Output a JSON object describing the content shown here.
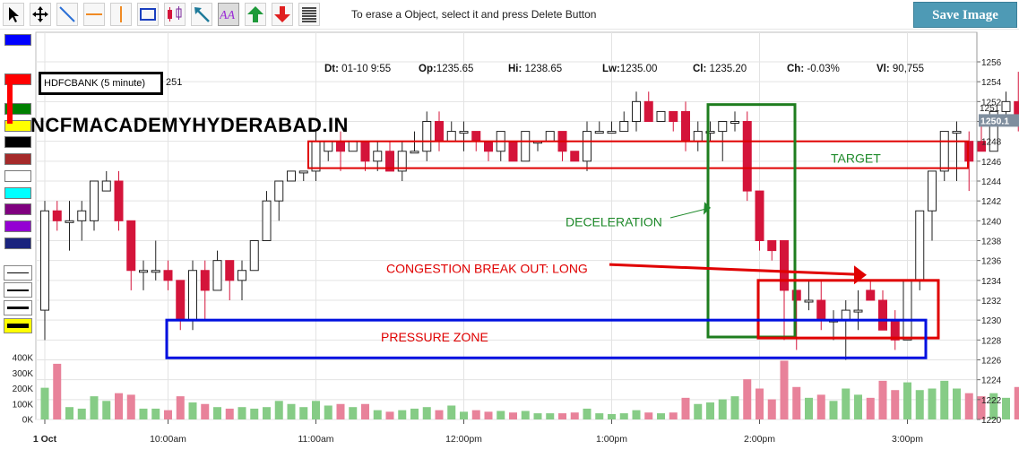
{
  "toolbar": {
    "tools": [
      {
        "name": "pointer-tool-icon"
      },
      {
        "name": "move-tool-icon"
      },
      {
        "name": "trendline-tool-icon"
      },
      {
        "name": "horizontal-line-tool-icon"
      },
      {
        "name": "vertical-line-tool-icon"
      },
      {
        "name": "rectangle-tool-icon"
      },
      {
        "name": "candle-pattern-tool-icon"
      },
      {
        "name": "arrow-tool-icon"
      },
      {
        "name": "text-tool-icon"
      },
      {
        "name": "up-arrow-tool-icon"
      },
      {
        "name": "down-arrow-tool-icon"
      },
      {
        "name": "fibonacci-tool-icon"
      }
    ],
    "hint": "To erase a Object, select it and press Delete Button",
    "save_label": "Save Image"
  },
  "palette": {
    "colors": [
      "#0000ff",
      "#ff0000",
      "#008000",
      "#ffff00",
      "#000000",
      "#a52a2a",
      "#ffffff",
      "#00ffff",
      "#800080",
      "#9400d3",
      "#1a237e"
    ],
    "line_widths": [
      1,
      2,
      3,
      5
    ]
  },
  "ohlc": {
    "date_label": "Dt:",
    "date": "01-10 9:55",
    "open_label": "Op:",
    "open": "1235.65",
    "high_label": "Hi:",
    "high": "1238.65",
    "low_label": "Lw:",
    "low": "1235.00",
    "close_label": "Cl:",
    "close": "1235.20",
    "change_label": "Ch:",
    "change": "-0.03%",
    "volume_label": "Vl:",
    "volume": "90,755"
  },
  "symbol": {
    "name": "HDFCBANK (5 minute)",
    "extra": "251"
  },
  "watermark": "NCFMACADEMYHYDERABAD.IN",
  "annotations": {
    "target": "TARGET",
    "deceleration": "DECELERATION",
    "congestion": "CONGESTION BREAK OUT: LONG",
    "pressure": "PRESSURE ZONE"
  },
  "colors": {
    "up_candle": "#ffffff",
    "down_candle": "#d4143a",
    "up_volume": "#86cc86",
    "down_volume": "#e8829a",
    "target_box": "#e00000",
    "deceleration_box": "#1e7d1e",
    "pressure_box": "#0010e0",
    "congestion_box": "#e00000",
    "price_tag": "#7f8e9e"
  },
  "chart_data": {
    "type": "candlestick",
    "ylim": [
      1220,
      1256
    ],
    "y_ticks": [
      1220,
      1222,
      1224,
      1226,
      1228,
      1230,
      1232,
      1234,
      1236,
      1238,
      1240,
      1242,
      1244,
      1246,
      1248,
      1250,
      1252,
      1254,
      1256
    ],
    "current_price_label": "1250.1",
    "partial_price_label": "1251",
    "volume_ticks": [
      "0K",
      "100K",
      "200K",
      "300K",
      "400K"
    ],
    "volume_max": 400,
    "x_labels": [
      {
        "index": 0,
        "label": "1 Oct"
      },
      {
        "index": 10,
        "label": "10:00am"
      },
      {
        "index": 22,
        "label": "11:00am"
      },
      {
        "index": 34,
        "label": "12:00pm"
      },
      {
        "index": 46,
        "label": "1:00pm"
      },
      {
        "index": 58,
        "label": "2:00pm"
      },
      {
        "index": 70,
        "label": "3:00pm"
      }
    ],
    "candles": [
      [
        1231,
        1241,
        1228,
        1242,
        205
      ],
      [
        1241,
        1240,
        1239,
        1242,
        360
      ],
      [
        1240,
        1240,
        1237,
        1242,
        80
      ],
      [
        1240,
        1241,
        1238,
        1242,
        70
      ],
      [
        1240,
        1244,
        1239,
        1244,
        150
      ],
      [
        1243,
        1244,
        1243,
        1245,
        120
      ],
      [
        1244,
        1240,
        1239,
        1245,
        170
      ],
      [
        1240,
        1235,
        1233,
        1240,
        160
      ],
      [
        1235,
        1235,
        1233,
        1236,
        70
      ],
      [
        1235,
        1235,
        1234,
        1238,
        70
      ],
      [
        1235,
        1234,
        1233,
        1236,
        60
      ],
      [
        1234,
        1230,
        1229,
        1234,
        150
      ],
      [
        1230,
        1235,
        1229,
        1236,
        110
      ],
      [
        1235,
        1233,
        1230,
        1236,
        100
      ],
      [
        1233,
        1236,
        1233,
        1237,
        80
      ],
      [
        1236,
        1234,
        1232,
        1236,
        70
      ],
      [
        1234,
        1235,
        1232,
        1236,
        80
      ],
      [
        1235,
        1238,
        1235,
        1238,
        70
      ],
      [
        1238,
        1242,
        1238,
        1243,
        80
      ],
      [
        1242,
        1244,
        1240,
        1244,
        120
      ],
      [
        1244,
        1245,
        1244,
        1245,
        100
      ],
      [
        1245,
        1245,
        1244,
        1245,
        80
      ],
      [
        1245,
        1248,
        1244,
        1249,
        120
      ],
      [
        1247,
        1248,
        1246,
        1248,
        90
      ],
      [
        1248,
        1247,
        1245,
        1249,
        100
      ],
      [
        1247,
        1248,
        1247,
        1248,
        80
      ],
      [
        1248,
        1246,
        1245,
        1248,
        100
      ],
      [
        1246,
        1247,
        1245,
        1248,
        60
      ],
      [
        1247,
        1245,
        1245,
        1248,
        50
      ],
      [
        1245,
        1247,
        1244,
        1248,
        60
      ],
      [
        1247,
        1247,
        1247,
        1249,
        70
      ],
      [
        1247,
        1250,
        1246,
        1251,
        80
      ],
      [
        1250,
        1248,
        1247,
        1251,
        60
      ],
      [
        1248,
        1249,
        1248,
        1250,
        90
      ],
      [
        1249,
        1249,
        1247,
        1250,
        50
      ],
      [
        1249,
        1248,
        1247,
        1249,
        60
      ],
      [
        1248,
        1247,
        1246,
        1248,
        50
      ],
      [
        1247,
        1249,
        1246,
        1249,
        55
      ],
      [
        1248,
        1246,
        1246,
        1248,
        45
      ],
      [
        1246,
        1249,
        1246,
        1249,
        55
      ],
      [
        1248,
        1248,
        1247,
        1248,
        40
      ],
      [
        1248,
        1249,
        1248,
        1249,
        40
      ],
      [
        1249,
        1247,
        1246,
        1249,
        40
      ],
      [
        1247,
        1246,
        1246,
        1247,
        45
      ],
      [
        1246,
        1249,
        1245,
        1250,
        70
      ],
      [
        1249,
        1249,
        1249,
        1250,
        40
      ],
      [
        1249,
        1249,
        1249,
        1250,
        35
      ],
      [
        1249,
        1250,
        1249,
        1251,
        40
      ],
      [
        1250,
        1252,
        1249,
        1253,
        60
      ],
      [
        1252,
        1250,
        1250,
        1253,
        45
      ],
      [
        1250,
        1251,
        1250,
        1251,
        40
      ],
      [
        1251,
        1250,
        1249,
        1251,
        45
      ],
      [
        1251,
        1248,
        1247,
        1252,
        140
      ],
      [
        1248,
        1249,
        1247,
        1250,
        100
      ],
      [
        1249,
        1249,
        1248,
        1250,
        110
      ],
      [
        1249,
        1250,
        1246,
        1250,
        130
      ],
      [
        1250,
        1250,
        1249,
        1251,
        150
      ],
      [
        1250,
        1243,
        1242,
        1251,
        260
      ],
      [
        1243,
        1238,
        1237,
        1243,
        200
      ],
      [
        1238,
        1237,
        1236,
        1238,
        130
      ],
      [
        1238,
        1233,
        1228,
        1238,
        380
      ],
      [
        1233,
        1232,
        1227,
        1233,
        210
      ],
      [
        1232,
        1232,
        1231,
        1234,
        140
      ],
      [
        1232,
        1230,
        1229,
        1234,
        160
      ],
      [
        1230,
        1230,
        1228,
        1231,
        120
      ],
      [
        1230,
        1231,
        1226,
        1232,
        200
      ],
      [
        1231,
        1231,
        1229,
        1233,
        160
      ],
      [
        1233,
        1232,
        1232,
        1234,
        140
      ],
      [
        1232,
        1229,
        1229,
        1233,
        250
      ],
      [
        1230,
        1228,
        1227,
        1231,
        190
      ],
      [
        1228,
        1234,
        1228,
        1234,
        240
      ],
      [
        1234,
        1241,
        1233,
        1241,
        190
      ],
      [
        1241,
        1245,
        1238,
        1245,
        200
      ],
      [
        1245,
        1249,
        1244,
        1249,
        250
      ],
      [
        1249,
        1249,
        1244,
        1250,
        200
      ],
      [
        1248,
        1246,
        1243,
        1249,
        170
      ],
      [
        1248,
        1247,
        1247,
        1250,
        150
      ],
      [
        1247,
        1251,
        1247,
        1251,
        170
      ],
      [
        1251,
        1252,
        1250,
        1253,
        140
      ],
      [
        1252,
        1250,
        1249,
        1255,
        210
      ]
    ]
  }
}
